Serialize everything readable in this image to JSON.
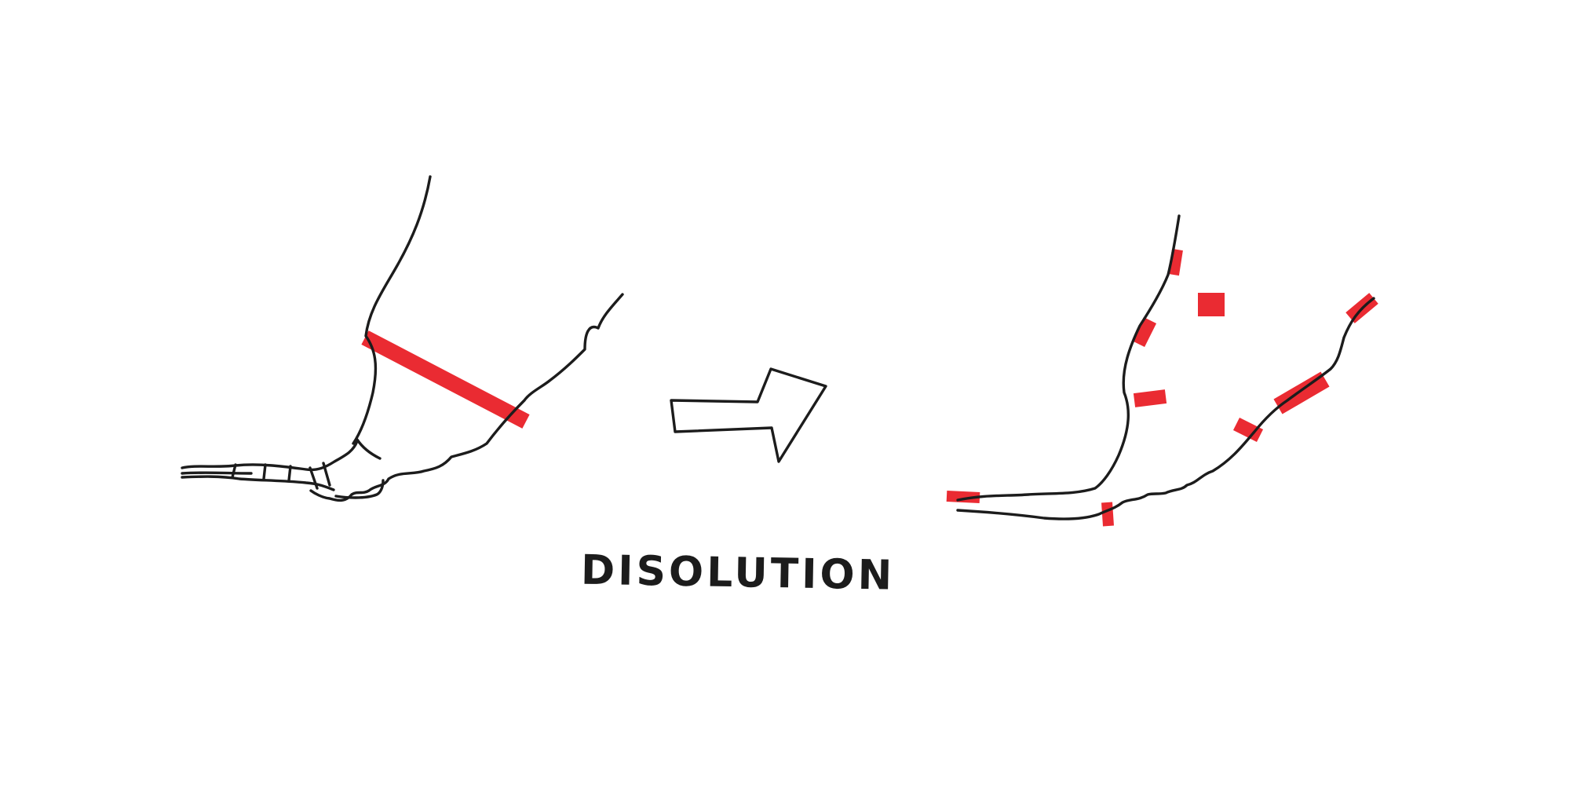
{
  "caption": "DISOLUTION",
  "colors": {
    "ink": "#1c1c1c",
    "marker": "#e8141c",
    "background": "#ffffff"
  },
  "panels": {
    "before": {
      "description_marks": [
        "river-lines",
        "barrier-band",
        "pier-ticks"
      ]
    },
    "after": {
      "description_marks": [
        "river-lines",
        "scattered-red-fragments"
      ]
    }
  }
}
